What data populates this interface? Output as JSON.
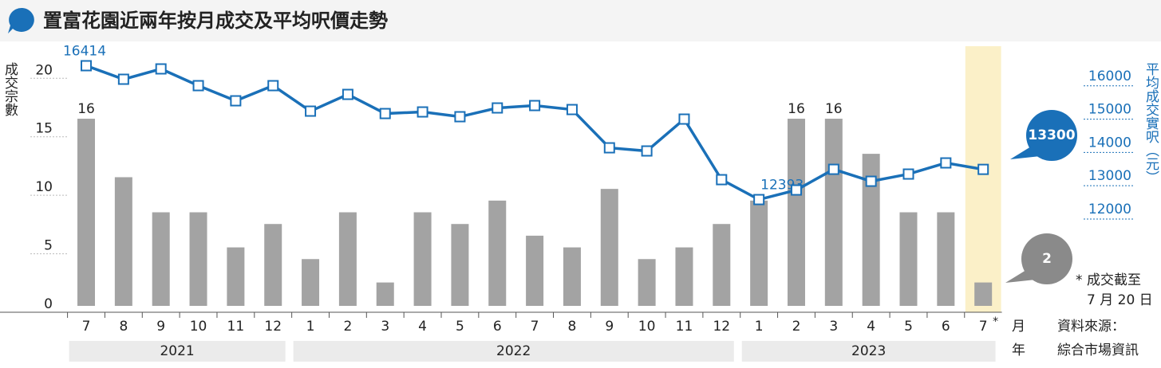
{
  "chart_data": {
    "type": "combo",
    "title": "置富花園近兩年按月成交及平均呎價走勢",
    "categories": [
      "7",
      "8",
      "9",
      "10",
      "11",
      "12",
      "1",
      "2",
      "3",
      "4",
      "5",
      "6",
      "7",
      "8",
      "9",
      "10",
      "11",
      "12",
      "1",
      "2",
      "3",
      "4",
      "5",
      "6",
      "7"
    ],
    "years": [
      "2021",
      "2022",
      "2023"
    ],
    "series": [
      {
        "name": "成交宗數",
        "type": "bar",
        "color": "#a3a3a3",
        "values": [
          16,
          11,
          8,
          8,
          5,
          7,
          4,
          8,
          2,
          8,
          7,
          9,
          6,
          5,
          10,
          4,
          5,
          7,
          9,
          16,
          16,
          13,
          8,
          8,
          2
        ],
        "value_labels": [
          "16",
          null,
          null,
          null,
          null,
          null,
          null,
          null,
          null,
          null,
          null,
          null,
          null,
          null,
          null,
          null,
          null,
          null,
          null,
          "16",
          "16",
          null,
          null,
          null,
          "2"
        ]
      },
      {
        "name": "平均成交實呎（元）",
        "type": "line",
        "axis": "y2",
        "color": "#1a70b8",
        "values": [
          16414,
          16007,
          16318,
          15815,
          15360,
          15815,
          15049,
          15552,
          14977,
          15025,
          14882,
          15145,
          15217,
          15097,
          13948,
          13853,
          14810,
          12991,
          12393,
          12680,
          13302,
          12943,
          13159,
          13494,
          13300
        ],
        "value_labels": [
          "16414",
          null,
          null,
          null,
          null,
          null,
          null,
          null,
          null,
          null,
          null,
          null,
          null,
          null,
          null,
          null,
          null,
          null,
          "12393",
          null,
          null,
          null,
          null,
          null,
          "13300"
        ]
      }
    ],
    "ylim": [
      0,
      22.2
    ],
    "yticks": [
      0,
      5,
      10,
      15,
      20
    ],
    "y2lim": [
      9200,
      17000
    ],
    "y2ticks": [
      12000,
      13000,
      14000,
      15000,
      16000
    ],
    "highlight": {
      "index": 24,
      "color": "#fbf0c8"
    },
    "footnote": {
      "marker": "*",
      "lines": [
        "成交截至",
        "7 月 20 日"
      ]
    },
    "x_axis_labels": [
      "月",
      "年"
    ],
    "source": [
      "資料來源：",
      "綜合市場資訊"
    ]
  }
}
